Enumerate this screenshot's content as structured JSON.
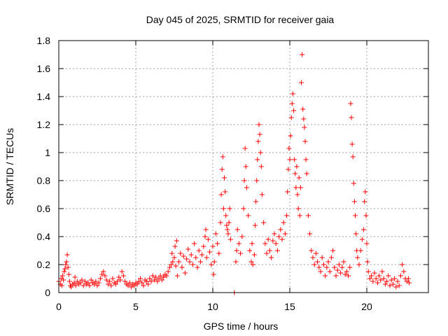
{
  "chart_data": {
    "type": "scatter",
    "title": "Day 045 of 2025, SRMTID for receiver gaia",
    "xlabel": "GPS time / hours",
    "ylabel": "SRMTID / TECUs",
    "xlim": [
      0,
      24
    ],
    "ylim": [
      0,
      1.8
    ],
    "xticks": [
      0,
      5,
      10,
      15,
      20
    ],
    "xtick_labels": [
      "0",
      "5",
      "10",
      "15",
      "20"
    ],
    "yticks": [
      0,
      0.2,
      0.4,
      0.6,
      0.8,
      1,
      1.2,
      1.4,
      1.6,
      1.8
    ],
    "ytick_labels": [
      "0",
      "0.2",
      "0.4",
      "0.6",
      "0.8",
      "1",
      "1.2",
      "1.4",
      "1.6",
      "1.8"
    ],
    "grid": true,
    "marker": "+",
    "color": "#ff0000",
    "series": [
      {
        "name": "SRMTID",
        "points": [
          [
            0.0,
            0.08
          ],
          [
            0.1,
            0.06
          ],
          [
            0.15,
            0.1
          ],
          [
            0.2,
            0.05
          ],
          [
            0.25,
            0.12
          ],
          [
            0.3,
            0.09
          ],
          [
            0.35,
            0.15
          ],
          [
            0.4,
            0.17
          ],
          [
            0.45,
            0.2
          ],
          [
            0.5,
            0.22
          ],
          [
            0.55,
            0.27
          ],
          [
            0.6,
            0.18
          ],
          [
            0.65,
            0.13
          ],
          [
            0.7,
            0.08
          ],
          [
            0.75,
            0.05
          ],
          [
            0.8,
            0.04
          ],
          [
            0.9,
            0.06
          ],
          [
            1.0,
            0.07
          ],
          [
            1.05,
            0.11
          ],
          [
            1.1,
            0.05
          ],
          [
            1.2,
            0.08
          ],
          [
            1.3,
            0.06
          ],
          [
            1.4,
            0.07
          ],
          [
            1.5,
            0.09
          ],
          [
            1.6,
            0.05
          ],
          [
            1.7,
            0.08
          ],
          [
            1.8,
            0.06
          ],
          [
            1.9,
            0.07
          ],
          [
            2.0,
            0.05
          ],
          [
            2.1,
            0.09
          ],
          [
            2.2,
            0.07
          ],
          [
            2.3,
            0.06
          ],
          [
            2.4,
            0.08
          ],
          [
            2.5,
            0.05
          ],
          [
            2.6,
            0.07
          ],
          [
            2.7,
            0.1
          ],
          [
            2.8,
            0.13
          ],
          [
            2.9,
            0.15
          ],
          [
            3.0,
            0.12
          ],
          [
            3.1,
            0.09
          ],
          [
            3.2,
            0.06
          ],
          [
            3.3,
            0.08
          ],
          [
            3.4,
            0.05
          ],
          [
            3.5,
            0.1
          ],
          [
            3.6,
            0.07
          ],
          [
            3.7,
            0.06
          ],
          [
            3.8,
            0.08
          ],
          [
            3.9,
            0.11
          ],
          [
            4.0,
            0.09
          ],
          [
            4.1,
            0.15
          ],
          [
            4.2,
            0.12
          ],
          [
            4.3,
            0.08
          ],
          [
            4.4,
            0.06
          ],
          [
            4.5,
            0.05
          ],
          [
            4.6,
            0.07
          ],
          [
            4.7,
            0.04
          ],
          [
            4.8,
            0.06
          ],
          [
            4.9,
            0.05
          ],
          [
            5.0,
            0.07
          ],
          [
            5.1,
            0.06
          ],
          [
            5.2,
            0.08
          ],
          [
            5.3,
            0.1
          ],
          [
            5.4,
            0.07
          ],
          [
            5.5,
            0.05
          ],
          [
            5.6,
            0.09
          ],
          [
            5.7,
            0.08
          ],
          [
            5.8,
            0.06
          ],
          [
            5.9,
            0.1
          ],
          [
            6.0,
            0.08
          ],
          [
            6.1,
            0.12
          ],
          [
            6.2,
            0.09
          ],
          [
            6.3,
            0.11
          ],
          [
            6.4,
            0.08
          ],
          [
            6.5,
            0.1
          ],
          [
            6.6,
            0.12
          ],
          [
            6.7,
            0.09
          ],
          [
            6.8,
            0.11
          ],
          [
            6.9,
            0.13
          ],
          [
            7.0,
            0.12
          ],
          [
            7.1,
            0.15
          ],
          [
            7.2,
            0.18
          ],
          [
            7.3,
            0.2
          ],
          [
            7.35,
            0.28
          ],
          [
            7.4,
            0.22
          ],
          [
            7.5,
            0.25
          ],
          [
            7.55,
            0.33
          ],
          [
            7.6,
            0.19
          ],
          [
            7.65,
            0.37
          ],
          [
            7.7,
            0.12
          ],
          [
            7.8,
            0.22
          ],
          [
            7.9,
            0.28
          ],
          [
            8.0,
            0.18
          ],
          [
            8.1,
            0.26
          ],
          [
            8.2,
            0.14
          ],
          [
            8.3,
            0.24
          ],
          [
            8.4,
            0.31
          ],
          [
            8.5,
            0.22
          ],
          [
            8.6,
            0.27
          ],
          [
            8.7,
            0.2
          ],
          [
            8.8,
            0.35
          ],
          [
            8.9,
            0.25
          ],
          [
            9.0,
            0.18
          ],
          [
            9.1,
            0.3
          ],
          [
            9.2,
            0.22
          ],
          [
            9.3,
            0.27
          ],
          [
            9.4,
            0.33
          ],
          [
            9.5,
            0.4
          ],
          [
            9.55,
            0.45
          ],
          [
            9.6,
            0.25
          ],
          [
            9.7,
            0.38
          ],
          [
            9.8,
            0.29
          ],
          [
            9.9,
            0.2
          ],
          [
            10.0,
            0.33
          ],
          [
            10.05,
            0.13
          ],
          [
            10.1,
            0.22
          ],
          [
            10.2,
            0.42
          ],
          [
            10.3,
            0.35
          ],
          [
            10.4,
            0.28
          ],
          [
            10.5,
            0.5
          ],
          [
            10.55,
            0.7
          ],
          [
            10.6,
            0.88
          ],
          [
            10.65,
            0.97
          ],
          [
            10.7,
            0.6
          ],
          [
            10.75,
            0.82
          ],
          [
            10.8,
            0.72
          ],
          [
            10.85,
            0.55
          ],
          [
            10.9,
            0.48
          ],
          [
            10.95,
            0.45
          ],
          [
            11.0,
            0.42
          ],
          [
            11.05,
            0.5
          ],
          [
            11.1,
            0.6
          ],
          [
            11.15,
            0.38
          ],
          [
            11.4,
            0.0
          ],
          [
            11.5,
            0.22
          ],
          [
            11.55,
            0.3
          ],
          [
            11.6,
            0.45
          ],
          [
            11.7,
            0.35
          ],
          [
            11.8,
            0.28
          ],
          [
            11.9,
            0.4
          ],
          [
            12.0,
            0.6
          ],
          [
            12.05,
            0.8
          ],
          [
            12.1,
            1.03
          ],
          [
            12.15,
            0.9
          ],
          [
            12.2,
            0.75
          ],
          [
            12.3,
            0.55
          ],
          [
            12.4,
            0.3
          ],
          [
            12.5,
            0.22
          ],
          [
            12.55,
            0.35
          ],
          [
            12.6,
            0.2
          ],
          [
            12.7,
            0.27
          ],
          [
            12.75,
            0.48
          ],
          [
            12.8,
            0.65
          ],
          [
            12.85,
            0.8
          ],
          [
            12.9,
            0.95
          ],
          [
            12.95,
            1.08
          ],
          [
            13.0,
            1.2
          ],
          [
            13.05,
            1.13
          ],
          [
            13.1,
            1.0
          ],
          [
            13.15,
            0.9
          ],
          [
            13.2,
            0.7
          ],
          [
            13.3,
            0.5
          ],
          [
            13.4,
            0.35
          ],
          [
            13.5,
            0.28
          ],
          [
            13.6,
            0.38
          ],
          [
            13.7,
            0.3
          ],
          [
            13.8,
            0.25
          ],
          [
            13.9,
            0.37
          ],
          [
            14.0,
            0.42
          ],
          [
            14.1,
            0.35
          ],
          [
            14.2,
            0.3
          ],
          [
            14.3,
            0.4
          ],
          [
            14.4,
            0.45
          ],
          [
            14.5,
            0.38
          ],
          [
            14.6,
            0.5
          ],
          [
            14.7,
            0.42
          ],
          [
            14.8,
            0.55
          ],
          [
            14.85,
            0.72
          ],
          [
            14.9,
            0.88
          ],
          [
            14.95,
            1.03
          ],
          [
            15.0,
            0.95
          ],
          [
            15.05,
            1.12
          ],
          [
            15.1,
            1.25
          ],
          [
            15.15,
            1.35
          ],
          [
            15.2,
            1.42
          ],
          [
            15.25,
            1.3
          ],
          [
            15.3,
            0.95
          ],
          [
            15.35,
            0.85
          ],
          [
            15.4,
            0.75
          ],
          [
            15.45,
            0.9
          ],
          [
            15.5,
            0.7
          ],
          [
            15.55,
            0.6
          ],
          [
            15.6,
            0.82
          ],
          [
            15.65,
            0.55
          ],
          [
            15.7,
            0.75
          ],
          [
            15.75,
            1.5
          ],
          [
            15.8,
            1.7
          ],
          [
            15.85,
            1.31
          ],
          [
            15.9,
            1.24
          ],
          [
            15.95,
            1.18
          ],
          [
            16.0,
            1.08
          ],
          [
            16.05,
            0.95
          ],
          [
            16.1,
            0.85
          ],
          [
            16.2,
            0.55
          ],
          [
            16.3,
            0.42
          ],
          [
            16.4,
            0.3
          ],
          [
            16.5,
            0.25
          ],
          [
            16.6,
            0.2
          ],
          [
            16.7,
            0.28
          ],
          [
            16.8,
            0.22
          ],
          [
            16.9,
            0.18
          ],
          [
            17.0,
            0.15
          ],
          [
            17.1,
            0.25
          ],
          [
            17.2,
            0.2
          ],
          [
            17.3,
            0.12
          ],
          [
            17.4,
            0.18
          ],
          [
            17.5,
            0.22
          ],
          [
            17.6,
            0.15
          ],
          [
            17.7,
            0.25
          ],
          [
            17.8,
            0.3
          ],
          [
            17.9,
            0.18
          ],
          [
            18.0,
            0.12
          ],
          [
            18.1,
            0.16
          ],
          [
            18.2,
            0.2
          ],
          [
            18.3,
            0.14
          ],
          [
            18.4,
            0.18
          ],
          [
            18.5,
            0.22
          ],
          [
            18.6,
            0.13
          ],
          [
            18.7,
            0.15
          ],
          [
            18.8,
            0.12
          ],
          [
            18.9,
            0.18
          ],
          [
            18.95,
            1.35
          ],
          [
            19.0,
            1.25
          ],
          [
            19.05,
            1.06
          ],
          [
            19.1,
            0.97
          ],
          [
            19.15,
            0.78
          ],
          [
            19.2,
            0.65
          ],
          [
            19.25,
            0.55
          ],
          [
            19.3,
            0.42
          ],
          [
            19.35,
            0.3
          ],
          [
            19.4,
            0.25
          ],
          [
            19.5,
            0.2
          ],
          [
            19.6,
            0.3
          ],
          [
            19.7,
            0.38
          ],
          [
            19.8,
            0.45
          ],
          [
            19.85,
            0.65
          ],
          [
            19.9,
            0.72
          ],
          [
            19.95,
            0.55
          ],
          [
            20.0,
            0.35
          ],
          [
            20.05,
            0.22
          ],
          [
            20.1,
            0.15
          ],
          [
            20.2,
            0.1
          ],
          [
            20.3,
            0.12
          ],
          [
            20.4,
            0.08
          ],
          [
            20.5,
            0.14
          ],
          [
            20.6,
            0.1
          ],
          [
            20.7,
            0.07
          ],
          [
            20.8,
            0.12
          ],
          [
            20.9,
            0.09
          ],
          [
            21.0,
            0.15
          ],
          [
            21.1,
            0.1
          ],
          [
            21.2,
            0.06
          ],
          [
            21.3,
            0.08
          ],
          [
            21.4,
            0.12
          ],
          [
            21.5,
            0.05
          ],
          [
            21.6,
            0.09
          ],
          [
            21.7,
            0.06
          ],
          [
            21.8,
            0.1
          ],
          [
            21.9,
            0.04
          ],
          [
            22.0,
            0.08
          ],
          [
            22.1,
            0.05
          ],
          [
            22.2,
            0.12
          ],
          [
            22.3,
            0.2
          ],
          [
            22.4,
            0.15
          ],
          [
            22.5,
            0.1
          ],
          [
            22.6,
            0.08
          ],
          [
            22.7,
            0.1
          ],
          [
            22.75,
            0.07
          ]
        ]
      }
    ]
  }
}
